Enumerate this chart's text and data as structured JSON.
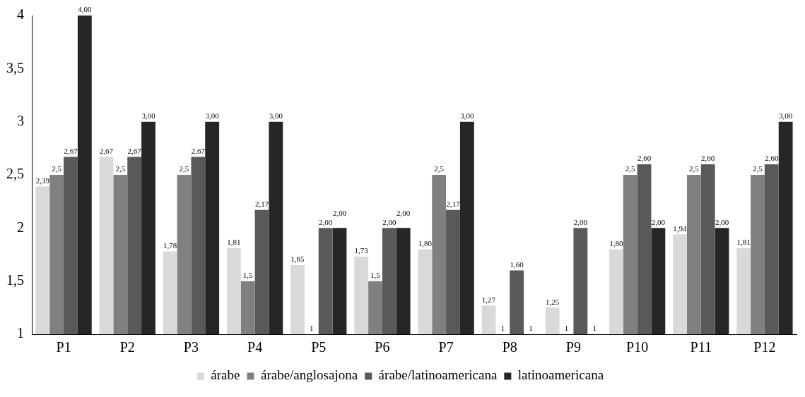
{
  "chart_data": {
    "type": "bar",
    "categories": [
      "P1",
      "P2",
      "P3",
      "P4",
      "P5",
      "P6",
      "P7",
      "P8",
      "P9",
      "P10",
      "P11",
      "P12"
    ],
    "series": [
      {
        "name": "árabe",
        "color": "#d9d9d9",
        "values": [
          2.39,
          2.67,
          1.78,
          1.81,
          1.65,
          1.73,
          1.8,
          1.27,
          1.25,
          1.8,
          1.94,
          1.81
        ],
        "value_labels": [
          "2,39",
          "2,67",
          "1,78",
          "1,81",
          "1,65",
          "1,73",
          "1,80",
          "1,27",
          "1,25",
          "1,80",
          "1,94",
          "1,81"
        ]
      },
      {
        "name": "árabe/anglosajona",
        "color": "#808080",
        "values": [
          2.5,
          2.5,
          2.5,
          1.5,
          1,
          1.5,
          2.5,
          1,
          1,
          2.5,
          2.5,
          2.5
        ],
        "value_labels": [
          "2,5",
          "2,5",
          "2,5",
          "1,5",
          "1",
          "1,5",
          "2,5",
          "1",
          "1",
          "2,5",
          "2,5",
          "2,5"
        ]
      },
      {
        "name": "árabe/latinoamericana",
        "color": "#595959",
        "values": [
          2.67,
          2.67,
          2.67,
          2.17,
          2,
          2,
          2.17,
          1.6,
          2,
          2.6,
          2.6,
          2.6
        ],
        "value_labels": [
          "2,67",
          "2,67",
          "2,67",
          "2,17",
          "2,00",
          "2,00",
          "2,17",
          "1,60",
          "2,00",
          "2,60",
          "2,60",
          "2,60"
        ]
      },
      {
        "name": "latinoamericana",
        "color": "#262626",
        "values": [
          4,
          3,
          3,
          3,
          2,
          2,
          3,
          1,
          1,
          2,
          2,
          3
        ],
        "value_labels": [
          "4,00",
          "3,00",
          "3,00",
          "3,00",
          "2,00",
          "2,00",
          "3,00",
          "1",
          "1",
          "2,00",
          "2,00",
          "3,00"
        ]
      }
    ],
    "ylim": [
      1,
      4
    ],
    "yticks": [
      1,
      {
        "value": 1.5,
        "label": "1,5"
      },
      2,
      {
        "value": 2.5,
        "label": "2,5"
      },
      3,
      {
        "value": 3.5,
        "label": "3,5"
      },
      4
    ],
    "grid": false,
    "legend": "bottom"
  }
}
